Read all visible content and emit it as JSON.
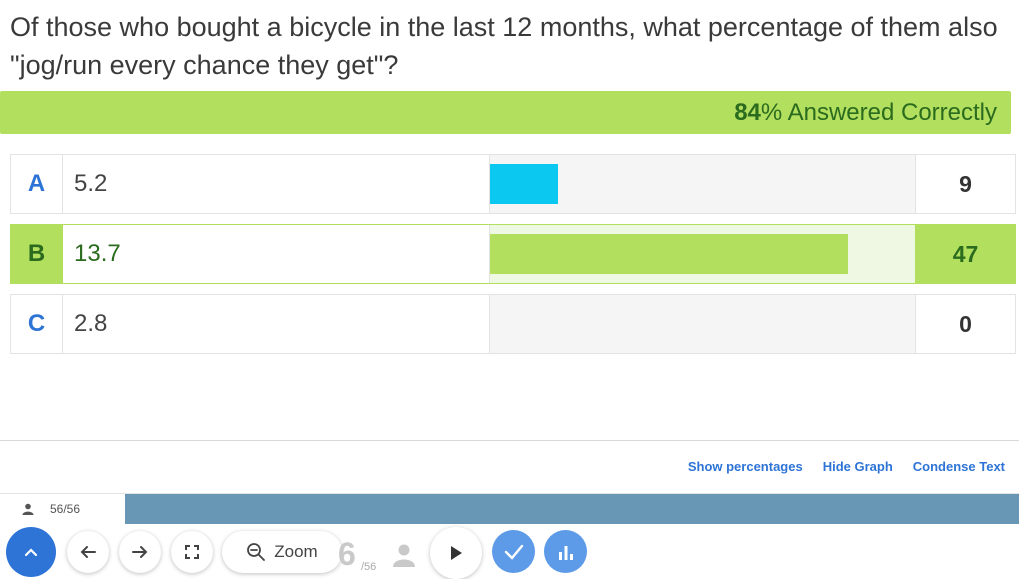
{
  "question": {
    "text": "Of those who bought a bicycle in the last 12 months, what percentage of them also \"jog/run every chance they get\"?"
  },
  "result": {
    "percent": "84",
    "label": "% Answered Correctly"
  },
  "answers": [
    {
      "letter": "A",
      "text": "5.2",
      "count": "9",
      "correct": false,
      "share": 0.16,
      "bar_color": "#0ac8f0"
    },
    {
      "letter": "B",
      "text": "13.7",
      "count": "47",
      "correct": true,
      "share": 0.84,
      "bar_color": "#b3df5f"
    },
    {
      "letter": "C",
      "text": "2.8",
      "count": "0",
      "correct": false,
      "share": 0.0,
      "bar_color": "#0ac8f0"
    }
  ],
  "links": {
    "show_percentages": "Show percentages",
    "hide_graph": "Hide Graph",
    "condense_text": "Condense Text"
  },
  "progress": {
    "label": "56/56",
    "fraction": 1.0
  },
  "toolbar": {
    "zoom_label": "Zoom",
    "page_number": "6",
    "page_total": "/56"
  },
  "colors": {
    "accent_blue": "#2e74d6",
    "correct_green": "#b3df5f",
    "progress_blue": "#6896b5"
  }
}
